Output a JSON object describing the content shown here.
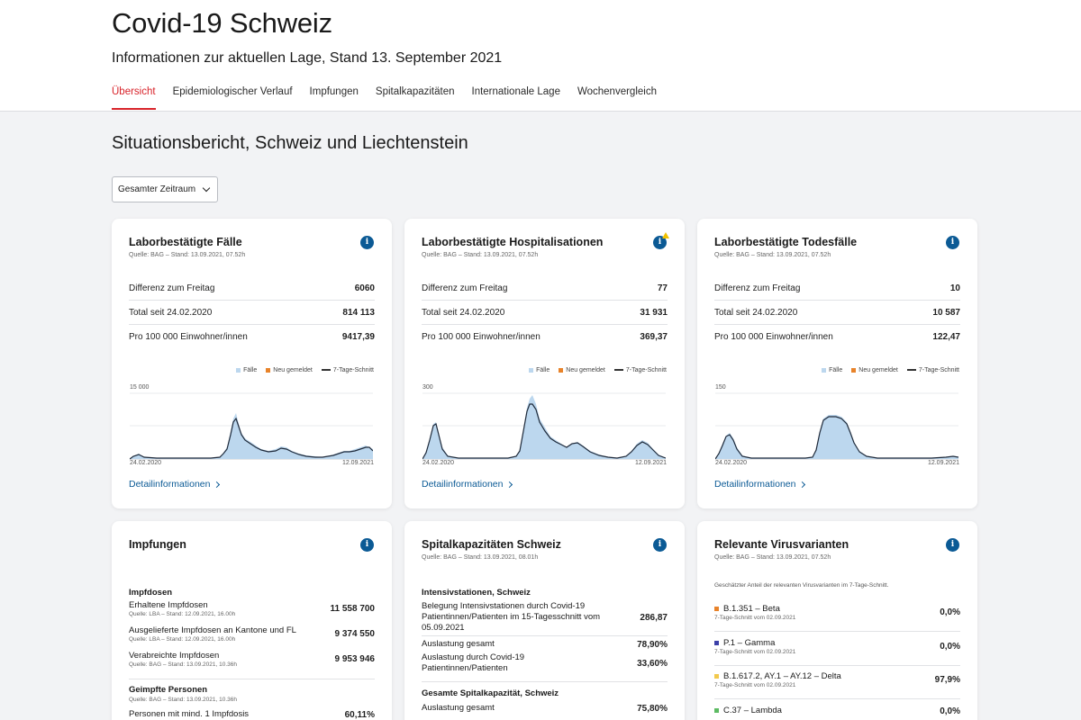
{
  "app": {
    "title": "Covid-19 Schweiz",
    "subtitle": "Informationen zur aktuellen Lage, Stand 13. September 2021"
  },
  "tabs": [
    {
      "label": "Übersicht",
      "active": true
    },
    {
      "label": "Epidemiologischer Verlauf"
    },
    {
      "label": "Impfungen"
    },
    {
      "label": "Spitalkapazitäten"
    },
    {
      "label": "Internationale Lage"
    },
    {
      "label": "Wochenvergleich"
    }
  ],
  "section_title": "Situationsbericht, Schweiz und Liechtenstein",
  "period_select": {
    "value": "Gesamter Zeitraum"
  },
  "legend": {
    "faelle": "Fälle",
    "neu": "Neu gemeldet",
    "schnitt": "7-Tage-Schnitt"
  },
  "colors": {
    "accent": "#d8232a",
    "link": "#0b5a95",
    "bar": "#bcd7ee",
    "line": "#1f2a3a",
    "new": "#e8832a"
  },
  "cards": {
    "faelle": {
      "title": "Laborbestätigte Fälle",
      "source": "Quelle: BAG – Stand: 13.09.2021, 07.52h",
      "rows": [
        {
          "label": "Differenz zum Freitag",
          "value": "6060"
        },
        {
          "label": "Total seit 24.02.2020",
          "value": "814 113"
        },
        {
          "label": "Pro 100 000 Einwohner/innen",
          "value": "9417,39"
        }
      ],
      "ymax": "15 000",
      "x_start": "24.02.2020",
      "x_end": "12.09.2021",
      "link": "Detailinformationen"
    },
    "hosp": {
      "title": "Laborbestätigte Hospitalisationen",
      "source": "Quelle: BAG – Stand: 13.09.2021, 07.52h",
      "rows": [
        {
          "label": "Differenz zum Freitag",
          "value": "77"
        },
        {
          "label": "Total seit 24.02.2020",
          "value": "31 931"
        },
        {
          "label": "Pro 100 000 Einwohner/innen",
          "value": "369,37"
        }
      ],
      "ymax": "300",
      "x_start": "24.02.2020",
      "x_end": "12.09.2021",
      "link": "Detailinformationen"
    },
    "tod": {
      "title": "Laborbestätigte Todesfälle",
      "source": "Quelle: BAG – Stand: 13.09.2021, 07.52h",
      "rows": [
        {
          "label": "Differenz zum Freitag",
          "value": "10"
        },
        {
          "label": "Total seit 24.02.2020",
          "value": "10 587"
        },
        {
          "label": "Pro 100 000 Einwohner/innen",
          "value": "122,47"
        }
      ],
      "ymax": "150",
      "x_start": "24.02.2020",
      "x_end": "12.09.2021",
      "link": "Detailinformationen"
    },
    "impf": {
      "title": "Impfungen",
      "head1": "Impfdosen",
      "rows": [
        {
          "label": "Erhaltene Impfdosen",
          "src": "Quelle: LBA – Stand: 12.09.2021, 16.00h",
          "value": "11 558 700"
        },
        {
          "label": "Ausgelieferte Impfdosen an Kantone und FL",
          "src": "Quelle: LBA – Stand: 12.09.2021, 16.00h",
          "value": "9 374 550"
        },
        {
          "label": "Verabreichte Impfdosen",
          "src": "Quelle: BAG – Stand: 13.09.2021, 10.36h",
          "value": "9 953 946"
        }
      ],
      "head2": "Geimpfte Personen",
      "head2_src": "Quelle: BAG – Stand: 13.09.2021, 10.36h",
      "row4": {
        "label": "Personen mit mind. 1 Impfdosis",
        "value": "60,11%"
      }
    },
    "spital": {
      "title": "Spitalkapazitäten Schweiz",
      "source": "Quelle: BAG – Stand: 13.09.2021, 08.01h",
      "head1": "Intensivstationen, Schweiz",
      "rows": [
        {
          "label": "Belegung Intensivstationen durch Covid-19 Patientinnen/Patienten im 15-Tagesschnitt vom 05.09.2021",
          "value": "286,87"
        },
        {
          "label": "Auslastung gesamt",
          "value": "78,90%"
        },
        {
          "label": "Auslastung durch Covid-19 Patientinnen/Patienten",
          "value": "33,60%"
        }
      ],
      "head2": "Gesamte Spitalkapazität, Schweiz",
      "row4": {
        "label": "Auslastung gesamt",
        "value": "75,80%"
      }
    },
    "varianten": {
      "title": "Relevante Virusvarianten",
      "source": "Quelle: BAG – Stand: 13.09.2021, 07.52h",
      "note": "Geschätzter Anteil der relevanten Virusvarianten im 7-Tage-Schnitt.",
      "rows": [
        {
          "label": "B.1.351 – Beta",
          "src": "7-Tage-Schnitt vom 02.09.2021",
          "value": "0,0%",
          "color": "#e8832a"
        },
        {
          "label": "P.1 – Gamma",
          "src": "7-Tage-Schnitt vom 02.09.2021",
          "value": "0,0%",
          "color": "#3b3fa8"
        },
        {
          "label": "B.1.617.2, AY.1 – AY.12 – Delta",
          "src": "7-Tage-Schnitt vom 02.09.2021",
          "value": "97,9%",
          "color": "#f2c94c"
        },
        {
          "label": "C.37 – Lambda",
          "value": "0,0%",
          "color": "#5dbb63"
        }
      ]
    }
  }
}
